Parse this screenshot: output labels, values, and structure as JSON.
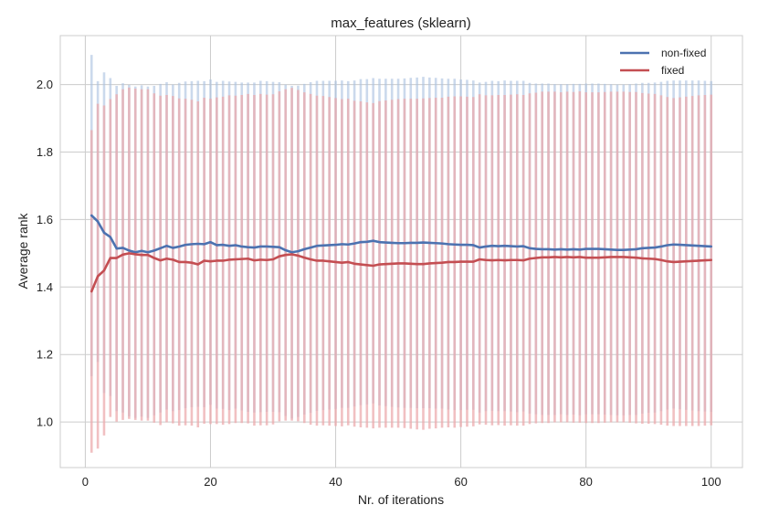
{
  "chart_data": {
    "type": "line",
    "title": "max_features (sklearn)",
    "xlabel": "Nr. of iterations",
    "ylabel": "Average rank",
    "xlim": [
      -4,
      105
    ],
    "ylim": [
      0.865,
      2.145
    ],
    "xticks": [
      0,
      20,
      40,
      60,
      80,
      100
    ],
    "yticks": [
      1.0,
      1.2,
      1.4,
      1.6,
      1.8,
      2.0
    ],
    "xtick_labels": [
      "0",
      "20",
      "40",
      "60",
      "80",
      "100"
    ],
    "ytick_labels": [
      "1.0",
      "1.2",
      "1.4",
      "1.6",
      "1.8",
      "2.0"
    ],
    "grid": true,
    "legend_position": "top-right",
    "error_bars": "vertical band per iteration, mean ± std",
    "x": [
      1,
      2,
      3,
      4,
      5,
      6,
      7,
      8,
      9,
      10,
      11,
      12,
      13,
      14,
      15,
      16,
      17,
      18,
      19,
      20,
      21,
      22,
      23,
      24,
      25,
      26,
      27,
      28,
      29,
      30,
      31,
      32,
      33,
      34,
      35,
      36,
      37,
      38,
      39,
      40,
      41,
      42,
      43,
      44,
      45,
      46,
      47,
      48,
      49,
      50,
      51,
      52,
      53,
      54,
      55,
      56,
      57,
      58,
      59,
      60,
      61,
      62,
      63,
      64,
      65,
      66,
      67,
      68,
      69,
      70,
      71,
      72,
      73,
      74,
      75,
      76,
      77,
      78,
      79,
      80,
      81,
      82,
      83,
      84,
      85,
      86,
      87,
      88,
      89,
      90,
      91,
      92,
      93,
      94,
      95,
      96,
      97,
      98,
      99,
      100
    ],
    "series": [
      {
        "name": "non-fixed",
        "color": "#4c72b0",
        "error_color": "#a8bfe0",
        "values": [
          1.612,
          1.594,
          1.561,
          1.548,
          1.514,
          1.516,
          1.508,
          1.503,
          1.507,
          1.503,
          1.508,
          1.515,
          1.522,
          1.516,
          1.52,
          1.525,
          1.527,
          1.528,
          1.527,
          1.533,
          1.524,
          1.525,
          1.522,
          1.524,
          1.52,
          1.518,
          1.517,
          1.52,
          1.52,
          1.519,
          1.518,
          1.509,
          1.503,
          1.506,
          1.512,
          1.517,
          1.522,
          1.523,
          1.524,
          1.525,
          1.527,
          1.526,
          1.529,
          1.533,
          1.534,
          1.537,
          1.533,
          1.532,
          1.531,
          1.53,
          1.53,
          1.531,
          1.531,
          1.532,
          1.531,
          1.53,
          1.529,
          1.527,
          1.526,
          1.525,
          1.525,
          1.524,
          1.517,
          1.52,
          1.522,
          1.521,
          1.522,
          1.521,
          1.52,
          1.521,
          1.515,
          1.513,
          1.512,
          1.512,
          1.511,
          1.512,
          1.511,
          1.512,
          1.511,
          1.513,
          1.513,
          1.513,
          1.512,
          1.511,
          1.51,
          1.51,
          1.511,
          1.512,
          1.515,
          1.516,
          1.517,
          1.52,
          1.524,
          1.526,
          1.525,
          1.524,
          1.523,
          1.522,
          1.521,
          1.52
        ],
        "err": [
          0.476,
          0.416,
          0.475,
          0.471,
          0.482,
          0.488,
          0.491,
          0.491,
          0.491,
          0.491,
          0.488,
          0.487,
          0.485,
          0.484,
          0.485,
          0.484,
          0.483,
          0.483,
          0.483,
          0.482,
          0.484,
          0.486,
          0.487,
          0.484,
          0.486,
          0.488,
          0.489,
          0.491,
          0.49,
          0.489,
          0.489,
          0.491,
          0.493,
          0.491,
          0.49,
          0.49,
          0.489,
          0.488,
          0.487,
          0.486,
          0.485,
          0.484,
          0.483,
          0.483,
          0.482,
          0.482,
          0.484,
          0.485,
          0.486,
          0.487,
          0.488,
          0.489,
          0.49,
          0.491,
          0.49,
          0.49,
          0.489,
          0.49,
          0.491,
          0.49,
          0.489,
          0.488,
          0.489,
          0.488,
          0.489,
          0.489,
          0.49,
          0.49,
          0.491,
          0.49,
          0.49,
          0.49,
          0.491,
          0.491,
          0.49,
          0.489,
          0.49,
          0.49,
          0.491,
          0.49,
          0.49,
          0.49,
          0.49,
          0.49,
          0.49,
          0.49,
          0.49,
          0.491,
          0.49,
          0.489,
          0.489,
          0.488,
          0.487,
          0.486,
          0.487,
          0.488,
          0.489,
          0.49,
          0.49,
          0.49
        ]
      },
      {
        "name": "fixed",
        "color": "#c44e52",
        "error_color": "#eca7aa",
        "values": [
          1.387,
          1.432,
          1.449,
          1.486,
          1.486,
          1.496,
          1.5,
          1.497,
          1.495,
          1.495,
          1.486,
          1.479,
          1.484,
          1.481,
          1.474,
          1.474,
          1.472,
          1.467,
          1.478,
          1.476,
          1.478,
          1.478,
          1.481,
          1.482,
          1.483,
          1.484,
          1.479,
          1.481,
          1.48,
          1.482,
          1.491,
          1.495,
          1.497,
          1.493,
          1.487,
          1.482,
          1.478,
          1.478,
          1.476,
          1.474,
          1.472,
          1.474,
          1.469,
          1.467,
          1.465,
          1.463,
          1.467,
          1.468,
          1.469,
          1.47,
          1.47,
          1.469,
          1.468,
          1.468,
          1.47,
          1.471,
          1.472,
          1.474,
          1.474,
          1.475,
          1.475,
          1.475,
          1.482,
          1.48,
          1.479,
          1.48,
          1.479,
          1.48,
          1.48,
          1.479,
          1.484,
          1.486,
          1.488,
          1.488,
          1.489,
          1.488,
          1.489,
          1.488,
          1.489,
          1.487,
          1.487,
          1.487,
          1.488,
          1.489,
          1.489,
          1.489,
          1.488,
          1.487,
          1.485,
          1.484,
          1.483,
          1.48,
          1.476,
          1.474,
          1.475,
          1.476,
          1.477,
          1.478,
          1.479,
          1.48
        ],
        "err": [
          0.478,
          0.511,
          0.489,
          0.471,
          0.485,
          0.49,
          0.491,
          0.491,
          0.491,
          0.491,
          0.488,
          0.488,
          0.485,
          0.485,
          0.485,
          0.484,
          0.483,
          0.483,
          0.483,
          0.482,
          0.484,
          0.486,
          0.487,
          0.485,
          0.486,
          0.488,
          0.49,
          0.491,
          0.49,
          0.489,
          0.489,
          0.491,
          0.493,
          0.491,
          0.49,
          0.49,
          0.489,
          0.488,
          0.487,
          0.486,
          0.485,
          0.484,
          0.483,
          0.483,
          0.482,
          0.482,
          0.484,
          0.485,
          0.486,
          0.487,
          0.488,
          0.489,
          0.49,
          0.491,
          0.49,
          0.49,
          0.489,
          0.49,
          0.491,
          0.49,
          0.489,
          0.488,
          0.489,
          0.488,
          0.489,
          0.489,
          0.49,
          0.49,
          0.491,
          0.49,
          0.49,
          0.49,
          0.491,
          0.491,
          0.49,
          0.489,
          0.49,
          0.49,
          0.491,
          0.49,
          0.49,
          0.49,
          0.49,
          0.49,
          0.49,
          0.49,
          0.49,
          0.491,
          0.49,
          0.489,
          0.489,
          0.488,
          0.487,
          0.486,
          0.487,
          0.488,
          0.489,
          0.49,
          0.49,
          0.49
        ]
      }
    ]
  }
}
